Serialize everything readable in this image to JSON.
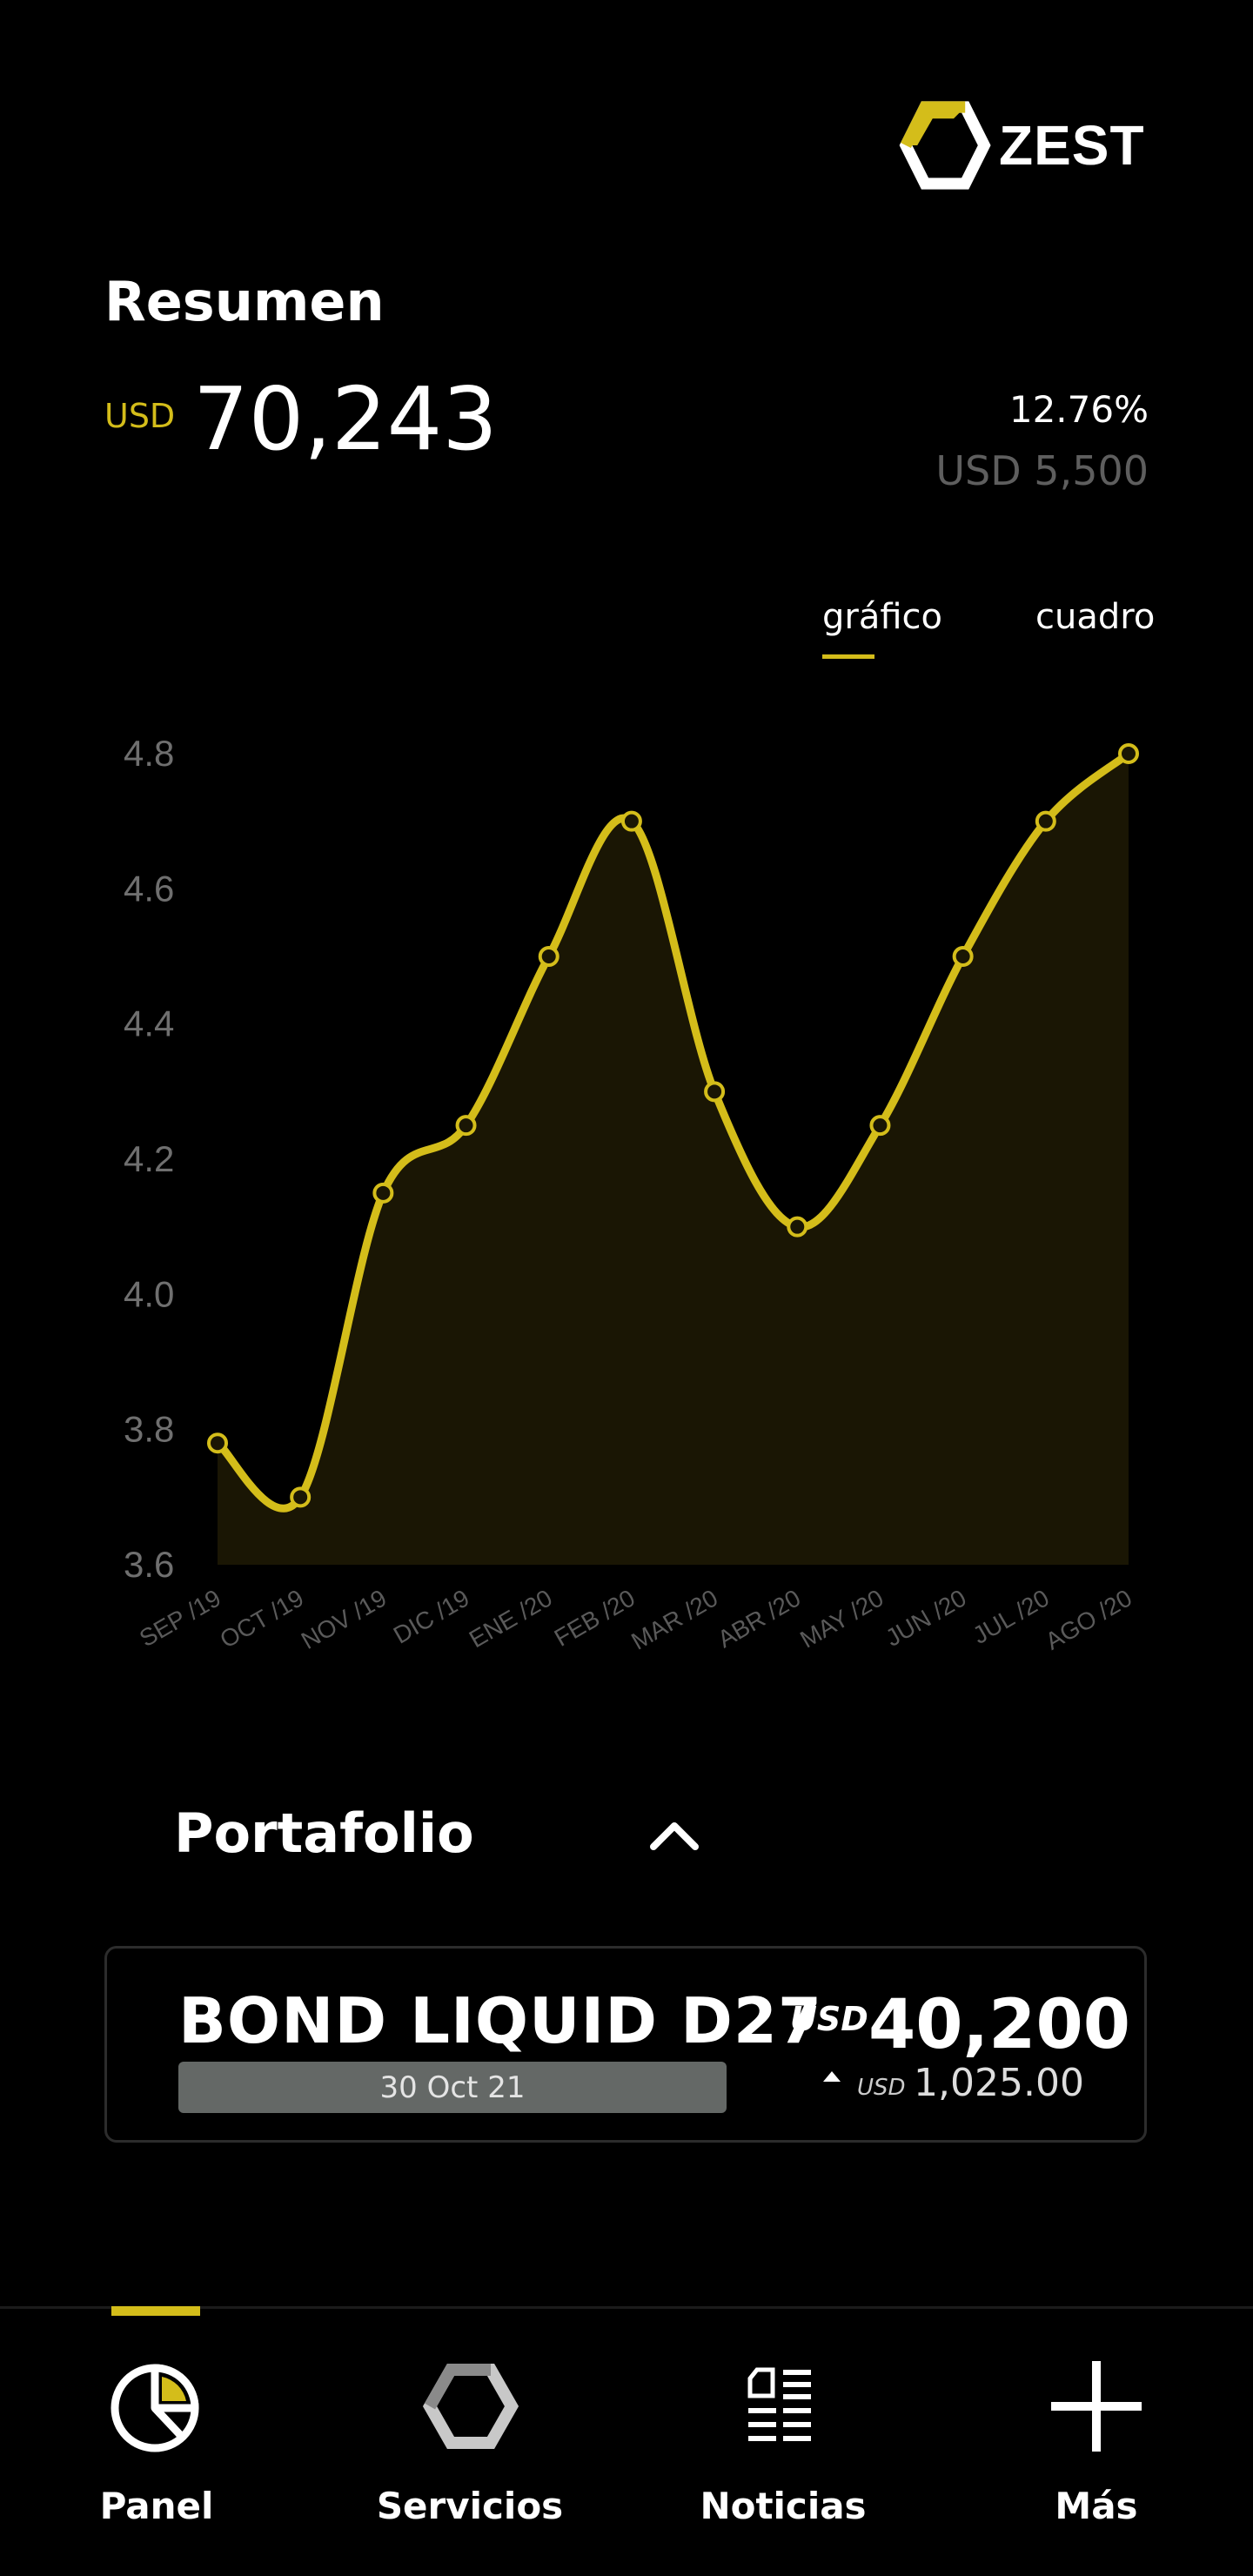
{
  "brand": {
    "name": "ZEST",
    "accent": "#d4bd1a"
  },
  "summary": {
    "title": "Resumen",
    "currency": "USD",
    "balance": "70,243",
    "change_pct": "12.76%",
    "change_amount": "USD 5,500"
  },
  "view_tabs": {
    "graph": "gráfico",
    "table": "cuadro",
    "active": "graph"
  },
  "chart_data": {
    "type": "area",
    "categories": [
      "SEP /19",
      "OCT /19",
      "NOV /19",
      "DIC /19",
      "ENE /20",
      "FEB /20",
      "MAR /20",
      "ABR /20",
      "MAY /20",
      "JUN /20",
      "JUL /20",
      "AGO /20"
    ],
    "values": [
      3.78,
      3.7,
      4.15,
      4.25,
      4.5,
      4.7,
      4.3,
      4.1,
      4.25,
      4.5,
      4.7,
      4.8
    ],
    "ylim": [
      3.6,
      4.8
    ],
    "yticks": [
      "3.6",
      "3.8",
      "4.0",
      "4.2",
      "4.4",
      "4.6",
      "4.8"
    ],
    "line_color": "#d4bd1a",
    "fill_color": "#1a1604",
    "grid": false
  },
  "portfolio": {
    "title": "Portafolio",
    "toggle_icon": "chevron-up-icon",
    "items": [
      {
        "name": "BOND LIQUID D27",
        "date": "30 Oct 21",
        "currency": "USD",
        "value": "40,200",
        "change_currency": "USD",
        "change_value": "1,025.00",
        "trend_icon": "triangle-up-icon"
      }
    ]
  },
  "nav": {
    "active": "Panel",
    "items": [
      {
        "label": "Panel",
        "icon": "pie-chart-icon"
      },
      {
        "label": "Servicios",
        "icon": "hexagon-icon"
      },
      {
        "label": "Noticias",
        "icon": "news-icon"
      },
      {
        "label": "Más",
        "icon": "plus-icon"
      }
    ]
  }
}
